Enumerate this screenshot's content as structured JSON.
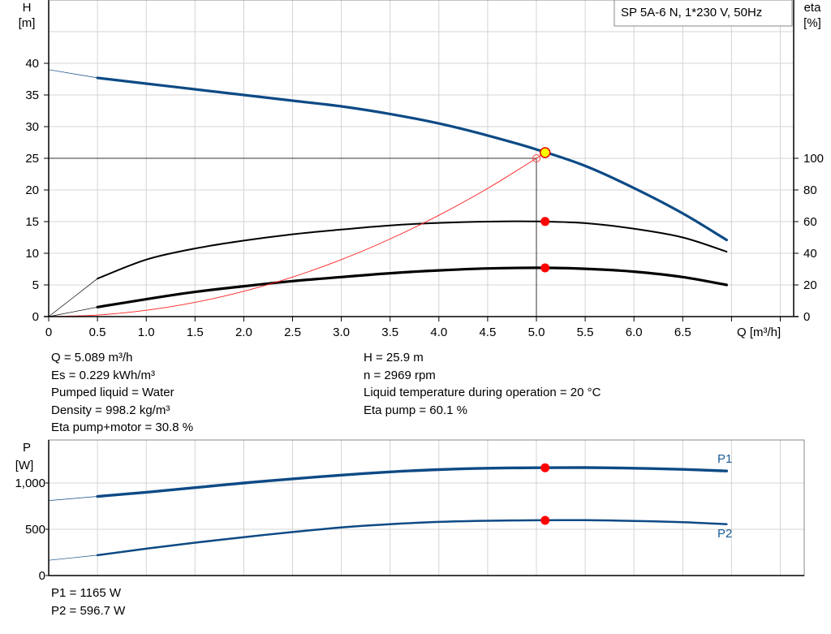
{
  "chart_data": [
    {
      "type": "line",
      "title": "SP 5A-6 N, 1*230 V, 50Hz",
      "xlabel": "Q [m³/h]",
      "ylabel": "H\n[m]",
      "ylabel_right": "eta\n[%]",
      "xlim": [
        0,
        7.5
      ],
      "ylim": [
        0,
        50
      ],
      "ylim_right": [
        0,
        128.2
      ],
      "grid": true,
      "x_ticks": [
        "0",
        "0.5",
        "1.0",
        "1.5",
        "2.0",
        "2.5",
        "3.0",
        "3.5",
        "4.0",
        "4.5",
        "5.0",
        "5.5",
        "6.0",
        "6.5"
      ],
      "y_ticks": [
        "0",
        "5",
        "10",
        "15",
        "20",
        "25",
        "30",
        "35",
        "40"
      ],
      "y_ticks_right": [
        "0",
        "20",
        "40",
        "60",
        "80",
        "100"
      ],
      "series": [
        {
          "id": "H",
          "axis": "left",
          "color": "#0d4a85",
          "x": [
            0,
            0.5,
            1.0,
            1.5,
            2.0,
            2.5,
            3.0,
            3.5,
            4.0,
            4.5,
            5.0,
            5.5,
            6.0,
            6.5,
            6.95
          ],
          "y": [
            39,
            37.7,
            36.8,
            35.9,
            35.0,
            34.1,
            33.2,
            32.0,
            30.5,
            28.6,
            26.4,
            23.8,
            20.3,
            16.3,
            12.1
          ]
        },
        {
          "id": "eta_pump",
          "axis": "right",
          "color": "#000000",
          "x": [
            0,
            0.5,
            1.0,
            1.5,
            2.0,
            2.5,
            3.0,
            3.5,
            4.0,
            4.5,
            5.0,
            5.5,
            6.0,
            6.5,
            6.95
          ],
          "y": [
            0,
            24,
            36,
            43,
            48,
            52,
            55,
            57.6,
            59.2,
            60,
            60.1,
            59,
            55.5,
            50,
            41
          ]
        },
        {
          "id": "eta_pump_motor",
          "axis": "right",
          "color": "#000000",
          "x": [
            0,
            0.5,
            1.0,
            1.5,
            2.0,
            2.5,
            3.0,
            3.5,
            4.0,
            4.5,
            5.0,
            5.5,
            6.0,
            6.5,
            6.95
          ],
          "y": [
            0,
            6,
            11,
            15.6,
            19.2,
            22.4,
            25,
            27.4,
            29.2,
            30.4,
            30.8,
            30.2,
            28.4,
            25,
            20
          ]
        },
        {
          "id": "system_curve",
          "axis": "left",
          "color": "#ff0000",
          "x": [
            0,
            0.5,
            1.0,
            1.5,
            2.0,
            2.5,
            3.0,
            3.5,
            4.0,
            4.5,
            5.0
          ],
          "y": [
            0,
            0.25,
            1,
            2.25,
            4,
            6.25,
            9,
            12.25,
            16,
            20.25,
            25
          ]
        }
      ],
      "operating_point": {
        "Q": 5.089,
        "H": 25.9,
        "eta_pump": 60.1,
        "eta_pump_motor": 30.8
      },
      "crosshair": {
        "Q": 5.0,
        "H": 25
      }
    },
    {
      "type": "line",
      "xlabel": "",
      "ylabel": "P\n[W]",
      "xlim": [
        0,
        7.5
      ],
      "ylim": [
        0,
        1500
      ],
      "grid": true,
      "y_ticks": [
        "0",
        "500",
        "1,000"
      ],
      "series": [
        {
          "id": "P1",
          "name": "P1",
          "color": "#0d4a85",
          "x": [
            0,
            0.5,
            1.0,
            1.5,
            2.0,
            2.5,
            3.0,
            3.5,
            4.0,
            4.5,
            5.0,
            5.5,
            6.0,
            6.5,
            6.95
          ],
          "y": [
            810,
            855,
            900,
            950,
            1000,
            1045,
            1085,
            1120,
            1145,
            1160,
            1165,
            1167,
            1160,
            1147,
            1130
          ]
        },
        {
          "id": "P2",
          "name": "P2",
          "color": "#0d4a85",
          "x": [
            0,
            0.5,
            1.0,
            1.5,
            2.0,
            2.5,
            3.0,
            3.5,
            4.0,
            4.5,
            5.0,
            5.5,
            6.0,
            6.5,
            6.95
          ],
          "y": [
            165,
            220,
            290,
            355,
            415,
            470,
            520,
            555,
            580,
            592,
            597,
            598,
            590,
            577,
            555
          ]
        }
      ],
      "operating_point": {
        "Q": 5.089,
        "P1": 1165,
        "P2": 596.7
      }
    }
  ],
  "info_left": [
    "Q = 5.089 m³/h",
    "Es = 0.229 kWh/m³",
    "Pumped liquid = Water",
    "Density = 998.2 kg/m³",
    "Eta pump+motor = 30.8 %"
  ],
  "info_right": [
    "H = 25.9 m",
    "n = 2969 rpm",
    "Liquid temperature during operation = 20 °C",
    "Eta pump = 60.1 %"
  ],
  "info_power": [
    "P1 = 1165 W",
    "P2 = 596.7 W"
  ],
  "colors": {
    "curve": "#0d4a85",
    "operating_point_fill": "#ffff00",
    "marker": "#ff0000",
    "grid": "#d4d4d4"
  }
}
